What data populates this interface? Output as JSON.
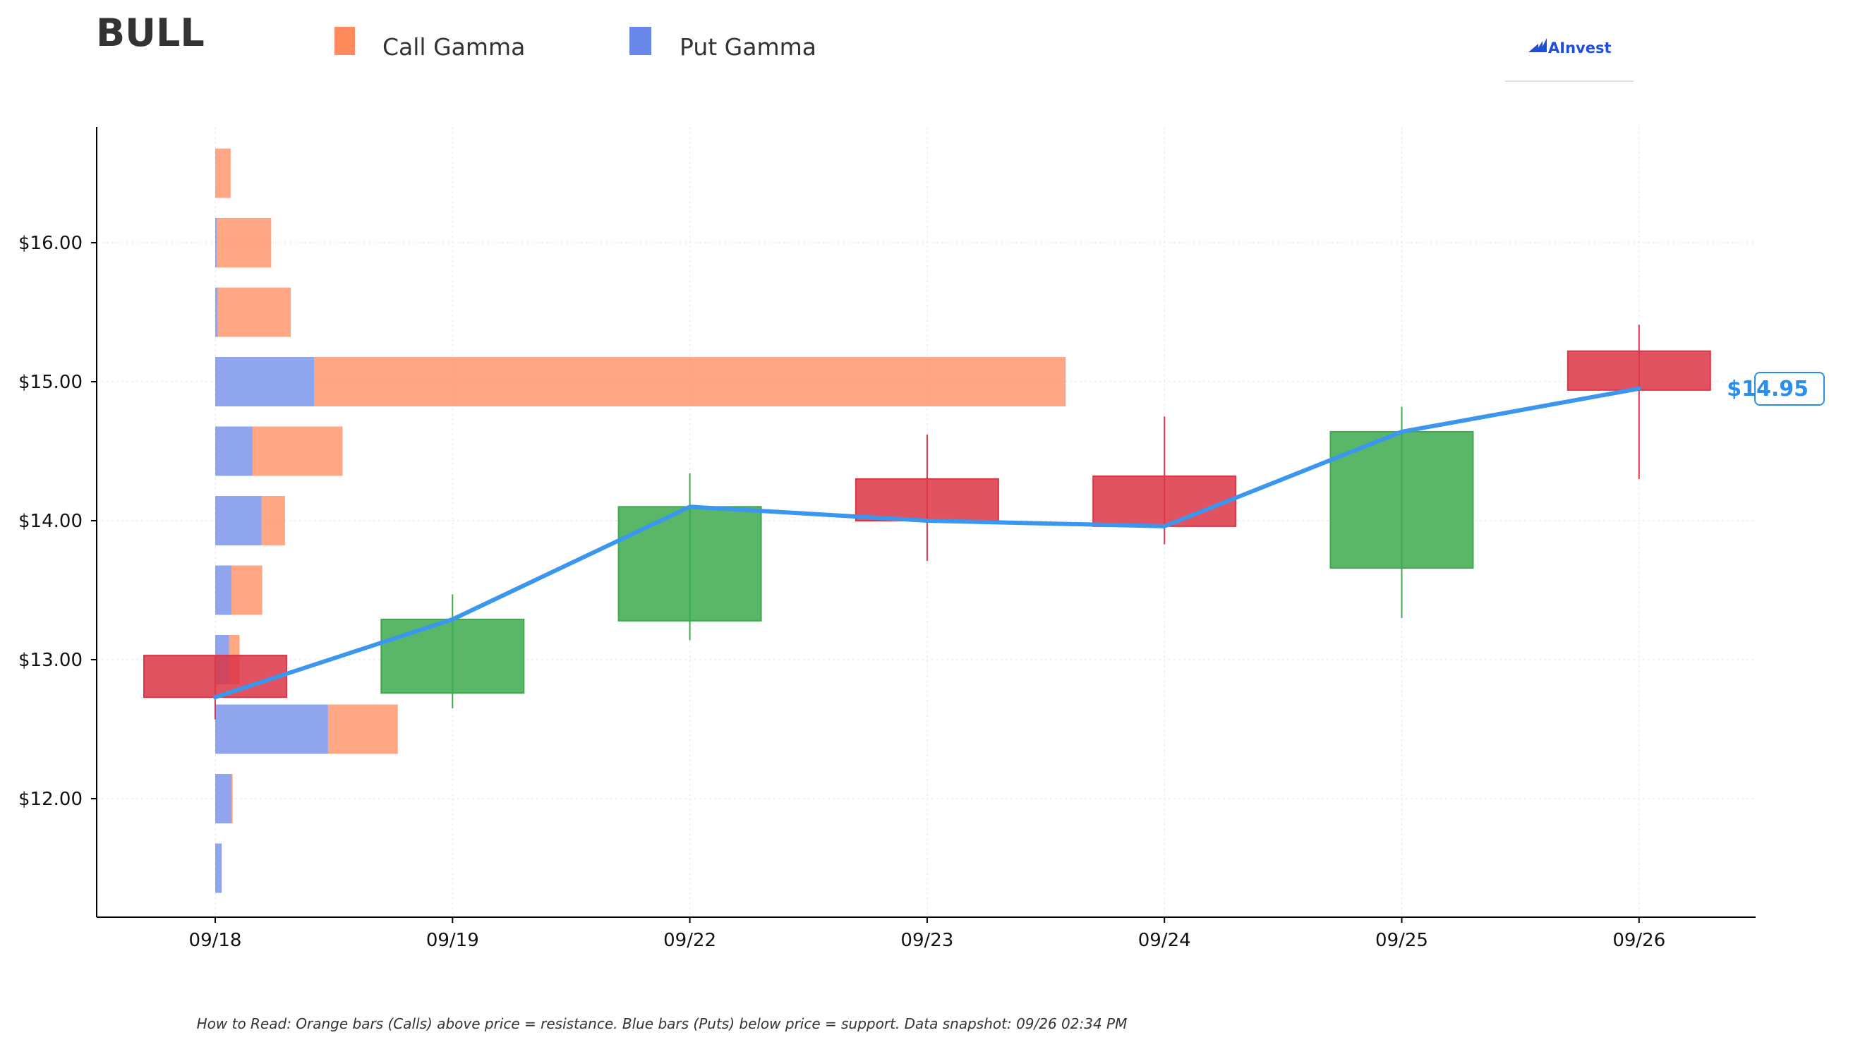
{
  "ticker": "BULL",
  "logo_text": "AInvest",
  "footnote": "How to Read: Orange bars (Calls) above price = resistance. Blue bars (Puts) below price = support. Data snapshot: 09/26 02:34 PM",
  "last_price_label": "$14.95",
  "colors": {
    "call": "#FF8A5C",
    "put": "#6A88EA",
    "up": "#3DAA4E",
    "down": "#DC3545",
    "price_line": "#3B96EE",
    "price_label": "#2B8FEA",
    "logo": "#1E4FD8"
  },
  "chart_data": {
    "type": "candlestick",
    "legend": [
      {
        "key": "call",
        "label": "Call Gamma"
      },
      {
        "key": "put",
        "label": "Put Gamma"
      }
    ],
    "legend_position": "top",
    "x_categories": [
      "09/18",
      "09/19",
      "09/22",
      "09/23",
      "09/24",
      "09/25",
      "09/26"
    ],
    "candles": [
      {
        "date": "09/18",
        "open": 13.03,
        "high": 13.03,
        "low": 12.57,
        "close": 12.73
      },
      {
        "date": "09/19",
        "open": 12.76,
        "high": 13.47,
        "low": 12.65,
        "close": 13.29
      },
      {
        "date": "09/22",
        "open": 13.28,
        "high": 14.34,
        "low": 13.14,
        "close": 14.1
      },
      {
        "date": "09/23",
        "open": 14.3,
        "high": 14.62,
        "low": 13.71,
        "close": 14.0
      },
      {
        "date": "09/24",
        "open": 14.32,
        "high": 14.75,
        "low": 13.83,
        "close": 13.96
      },
      {
        "date": "09/25",
        "open": 13.66,
        "high": 14.82,
        "low": 13.3,
        "close": 14.64
      },
      {
        "date": "09/26",
        "open": 15.22,
        "high": 15.41,
        "low": 14.3,
        "close": 14.94
      }
    ],
    "price_line": [
      12.73,
      13.29,
      14.1,
      14.0,
      13.96,
      14.64,
      14.95
    ],
    "gamma_by_strike": [
      {
        "strike": 11.5,
        "put": 0.8,
        "call": 0.0
      },
      {
        "strike": 12.0,
        "put": 2.0,
        "call": 0.15
      },
      {
        "strike": 12.5,
        "put": 13.9,
        "call": 8.6
      },
      {
        "strike": 13.0,
        "put": 1.7,
        "call": 1.3
      },
      {
        "strike": 13.5,
        "put": 2.0,
        "call": 3.8
      },
      {
        "strike": 14.0,
        "put": 5.7,
        "call": 2.9
      },
      {
        "strike": 14.5,
        "put": 4.6,
        "call": 11.1
      },
      {
        "strike": 15.0,
        "put": 12.2,
        "call": 92.6
      },
      {
        "strike": 15.5,
        "put": 0.3,
        "call": 9.0
      },
      {
        "strike": 16.0,
        "put": 0.2,
        "call": 6.7
      },
      {
        "strike": 16.5,
        "put": 0.0,
        "call": 1.9
      }
    ],
    "y_ticks": [
      12.0,
      13.0,
      14.0,
      15.0,
      16.0
    ],
    "y_tick_labels": [
      "$12.00",
      "$13.00",
      "$14.00",
      "$15.00",
      "$16.00"
    ],
    "ylim": [
      11.15,
      16.83
    ],
    "grid": true
  }
}
